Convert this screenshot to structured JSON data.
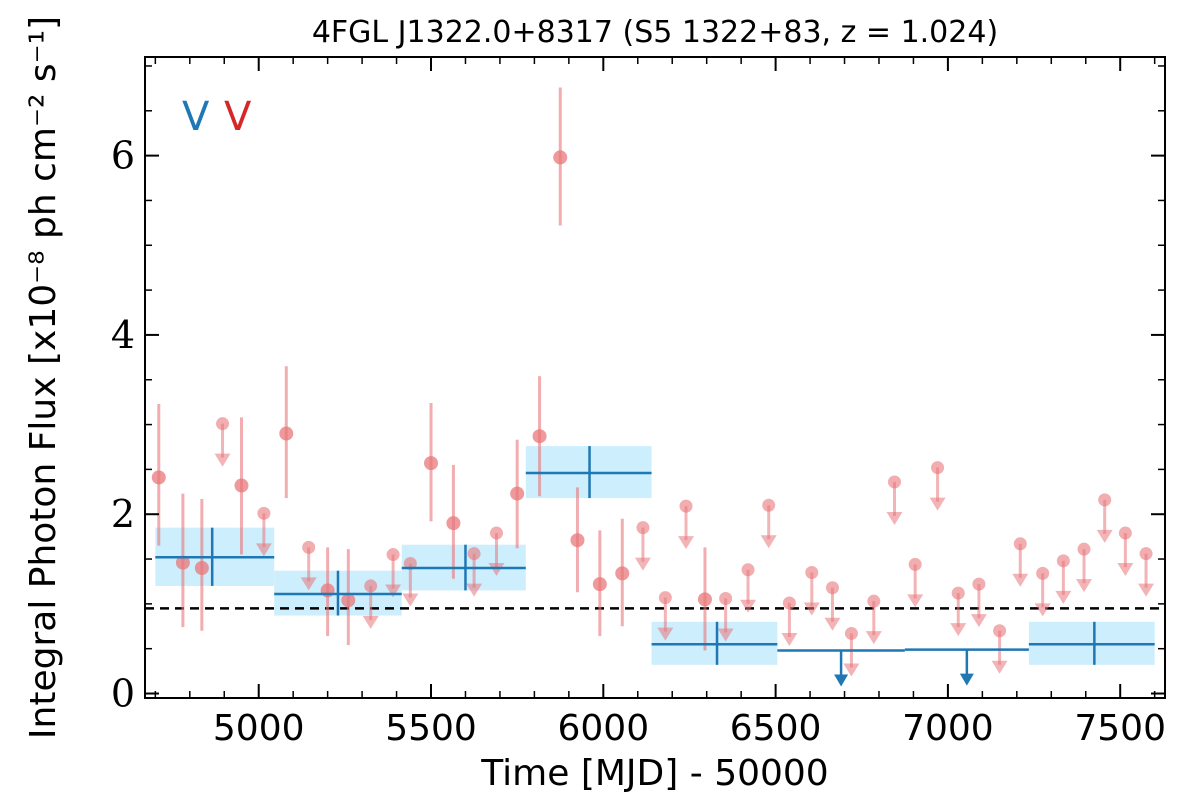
{
  "chart_data": {
    "type": "scatter",
    "title": "4FGL J1322.0+8317 (S5 1322+83, z = 1.024)",
    "xlabel": "Time [MJD] - 50000",
    "ylabel": "Integral Photon Flux [x10⁻⁸ ph cm⁻² s⁻¹]",
    "xlim": [
      4670,
      7630
    ],
    "ylim": [
      -0.05,
      7.1
    ],
    "x_ticks": [
      5000,
      5500,
      6000,
      6500,
      7000,
      7500
    ],
    "x_tick_labels": [
      "5000",
      "5500",
      "6000",
      "6500",
      "7000",
      "7500"
    ],
    "y_ticks": [
      0,
      2,
      4,
      6
    ],
    "y_tick_labels": [
      "0",
      "2",
      "4",
      "6"
    ],
    "reference_line": 0.95,
    "legend_labels": [
      {
        "text": "V",
        "color": "#1f77b4"
      },
      {
        "text": "V",
        "color": "#d62728"
      }
    ],
    "series": [
      {
        "name": "",
        "color": "#1f77b4",
        "band_color": "#cdeefc",
        "bins": [
          {
            "x": 4865,
            "x_lo": 4700,
            "x_hi": 5045,
            "y": 1.52,
            "y_lo": 1.2,
            "y_hi": 1.85
          },
          {
            "x": 5230,
            "x_lo": 5045,
            "x_hi": 5415,
            "y": 1.11,
            "y_lo": 0.87,
            "y_hi": 1.37
          },
          {
            "x": 5600,
            "x_lo": 5415,
            "x_hi": 5775,
            "y": 1.4,
            "y_lo": 1.15,
            "y_hi": 1.66
          },
          {
            "x": 5960,
            "x_lo": 5775,
            "x_hi": 6140,
            "y": 2.46,
            "y_lo": 2.18,
            "y_hi": 2.76
          },
          {
            "x": 6330,
            "x_lo": 6140,
            "x_hi": 6505,
            "y": 0.55,
            "y_lo": 0.32,
            "y_hi": 0.8
          },
          {
            "x": 7425,
            "x_lo": 7235,
            "x_hi": 7600,
            "y": 0.55,
            "y_lo": 0.32,
            "y_hi": 0.8
          }
        ],
        "upper_limits": [
          {
            "x": 6690,
            "x_lo": 6505,
            "x_hi": 6875,
            "y": 0.48
          },
          {
            "x": 7055,
            "x_lo": 6875,
            "x_hi": 7235,
            "y": 0.49
          }
        ]
      },
      {
        "name": "",
        "color": "#e8777a",
        "points": [
          {
            "x": 4710,
            "y": 2.41,
            "y_lo": 1.65,
            "y_hi": 3.23
          },
          {
            "x": 4780,
            "y": 1.46,
            "y_lo": 0.74,
            "y_hi": 2.23
          },
          {
            "x": 4835,
            "y": 1.4,
            "y_lo": 0.7,
            "y_hi": 2.17
          },
          {
            "x": 4950,
            "y": 2.32,
            "y_lo": 1.55,
            "y_hi": 3.08
          },
          {
            "x": 5080,
            "y": 2.9,
            "y_lo": 2.18,
            "y_hi": 3.65
          },
          {
            "x": 5200,
            "y": 1.15,
            "y_lo": 0.64,
            "y_hi": 1.63
          },
          {
            "x": 5260,
            "y": 1.04,
            "y_lo": 0.54,
            "y_hi": 1.61
          },
          {
            "x": 5500,
            "y": 2.57,
            "y_lo": 1.92,
            "y_hi": 3.24
          },
          {
            "x": 5565,
            "y": 1.9,
            "y_lo": 1.28,
            "y_hi": 2.55
          },
          {
            "x": 5750,
            "y": 2.23,
            "y_lo": 1.62,
            "y_hi": 2.83
          },
          {
            "x": 5815,
            "y": 2.87,
            "y_lo": 2.2,
            "y_hi": 3.54
          },
          {
            "x": 5875,
            "y": 5.98,
            "y_lo": 5.22,
            "y_hi": 6.76
          },
          {
            "x": 5925,
            "y": 1.71,
            "y_lo": 1.13,
            "y_hi": 2.3
          },
          {
            "x": 5990,
            "y": 1.22,
            "y_lo": 0.64,
            "y_hi": 1.82
          },
          {
            "x": 6055,
            "y": 1.34,
            "y_lo": 0.75,
            "y_hi": 1.95
          },
          {
            "x": 6295,
            "y": 1.05,
            "y_lo": 0.48,
            "y_hi": 1.63
          }
        ],
        "upper_limits": [
          {
            "x": 4895,
            "y": 3.01
          },
          {
            "x": 5015,
            "y": 2.01
          },
          {
            "x": 5145,
            "y": 1.63
          },
          {
            "x": 5325,
            "y": 1.2
          },
          {
            "x": 5390,
            "y": 1.55
          },
          {
            "x": 5440,
            "y": 1.45
          },
          {
            "x": 5625,
            "y": 1.56
          },
          {
            "x": 5690,
            "y": 1.79
          },
          {
            "x": 6115,
            "y": 1.85
          },
          {
            "x": 6180,
            "y": 1.07
          },
          {
            "x": 6240,
            "y": 2.09
          },
          {
            "x": 6355,
            "y": 1.06
          },
          {
            "x": 6420,
            "y": 1.38
          },
          {
            "x": 6480,
            "y": 2.1
          },
          {
            "x": 6540,
            "y": 1.01
          },
          {
            "x": 6605,
            "y": 1.35
          },
          {
            "x": 6665,
            "y": 1.18
          },
          {
            "x": 6720,
            "y": 0.67
          },
          {
            "x": 6785,
            "y": 1.03
          },
          {
            "x": 6845,
            "y": 2.36
          },
          {
            "x": 6905,
            "y": 1.44
          },
          {
            "x": 6970,
            "y": 2.52
          },
          {
            "x": 7030,
            "y": 1.12
          },
          {
            "x": 7090,
            "y": 1.22
          },
          {
            "x": 7150,
            "y": 0.7
          },
          {
            "x": 7210,
            "y": 1.67
          },
          {
            "x": 7275,
            "y": 1.34
          },
          {
            "x": 7335,
            "y": 1.48
          },
          {
            "x": 7395,
            "y": 1.61
          },
          {
            "x": 7455,
            "y": 2.16
          },
          {
            "x": 7515,
            "y": 1.79
          },
          {
            "x": 7575,
            "y": 1.56
          }
        ]
      }
    ]
  }
}
